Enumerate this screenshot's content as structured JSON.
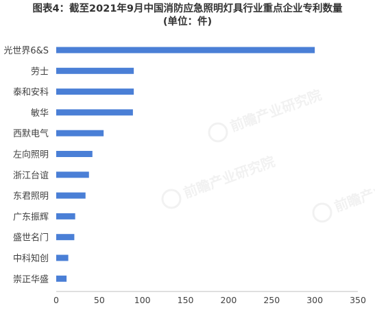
{
  "title": "图表4：截至2021年9月中国消防应急照明灯具行业重点企业专利数量",
  "subtitle": "(单位：件)",
  "watermark": "前瞻产业研究院",
  "colors": {
    "bar": "#4a7fd6",
    "axis": "#bfbfbf",
    "text": "#404040"
  },
  "chart_data": {
    "type": "bar",
    "orientation": "horizontal",
    "categories": [
      "光世界6&S",
      "劳士",
      "泰和安科",
      "敏华",
      "西默电气",
      "左向照明",
      "浙江台谊",
      "东君照明",
      "广东振辉",
      "盛世名门",
      "中科知创",
      "崇正华盛"
    ],
    "values": [
      300,
      90,
      90,
      89,
      55,
      42,
      38,
      34,
      22,
      21,
      14,
      12
    ],
    "xlim": [
      0,
      350
    ],
    "xticks": [
      "0",
      "50",
      "100",
      "150",
      "200",
      "250",
      "300",
      "350"
    ],
    "grid": false,
    "legend": "none"
  }
}
